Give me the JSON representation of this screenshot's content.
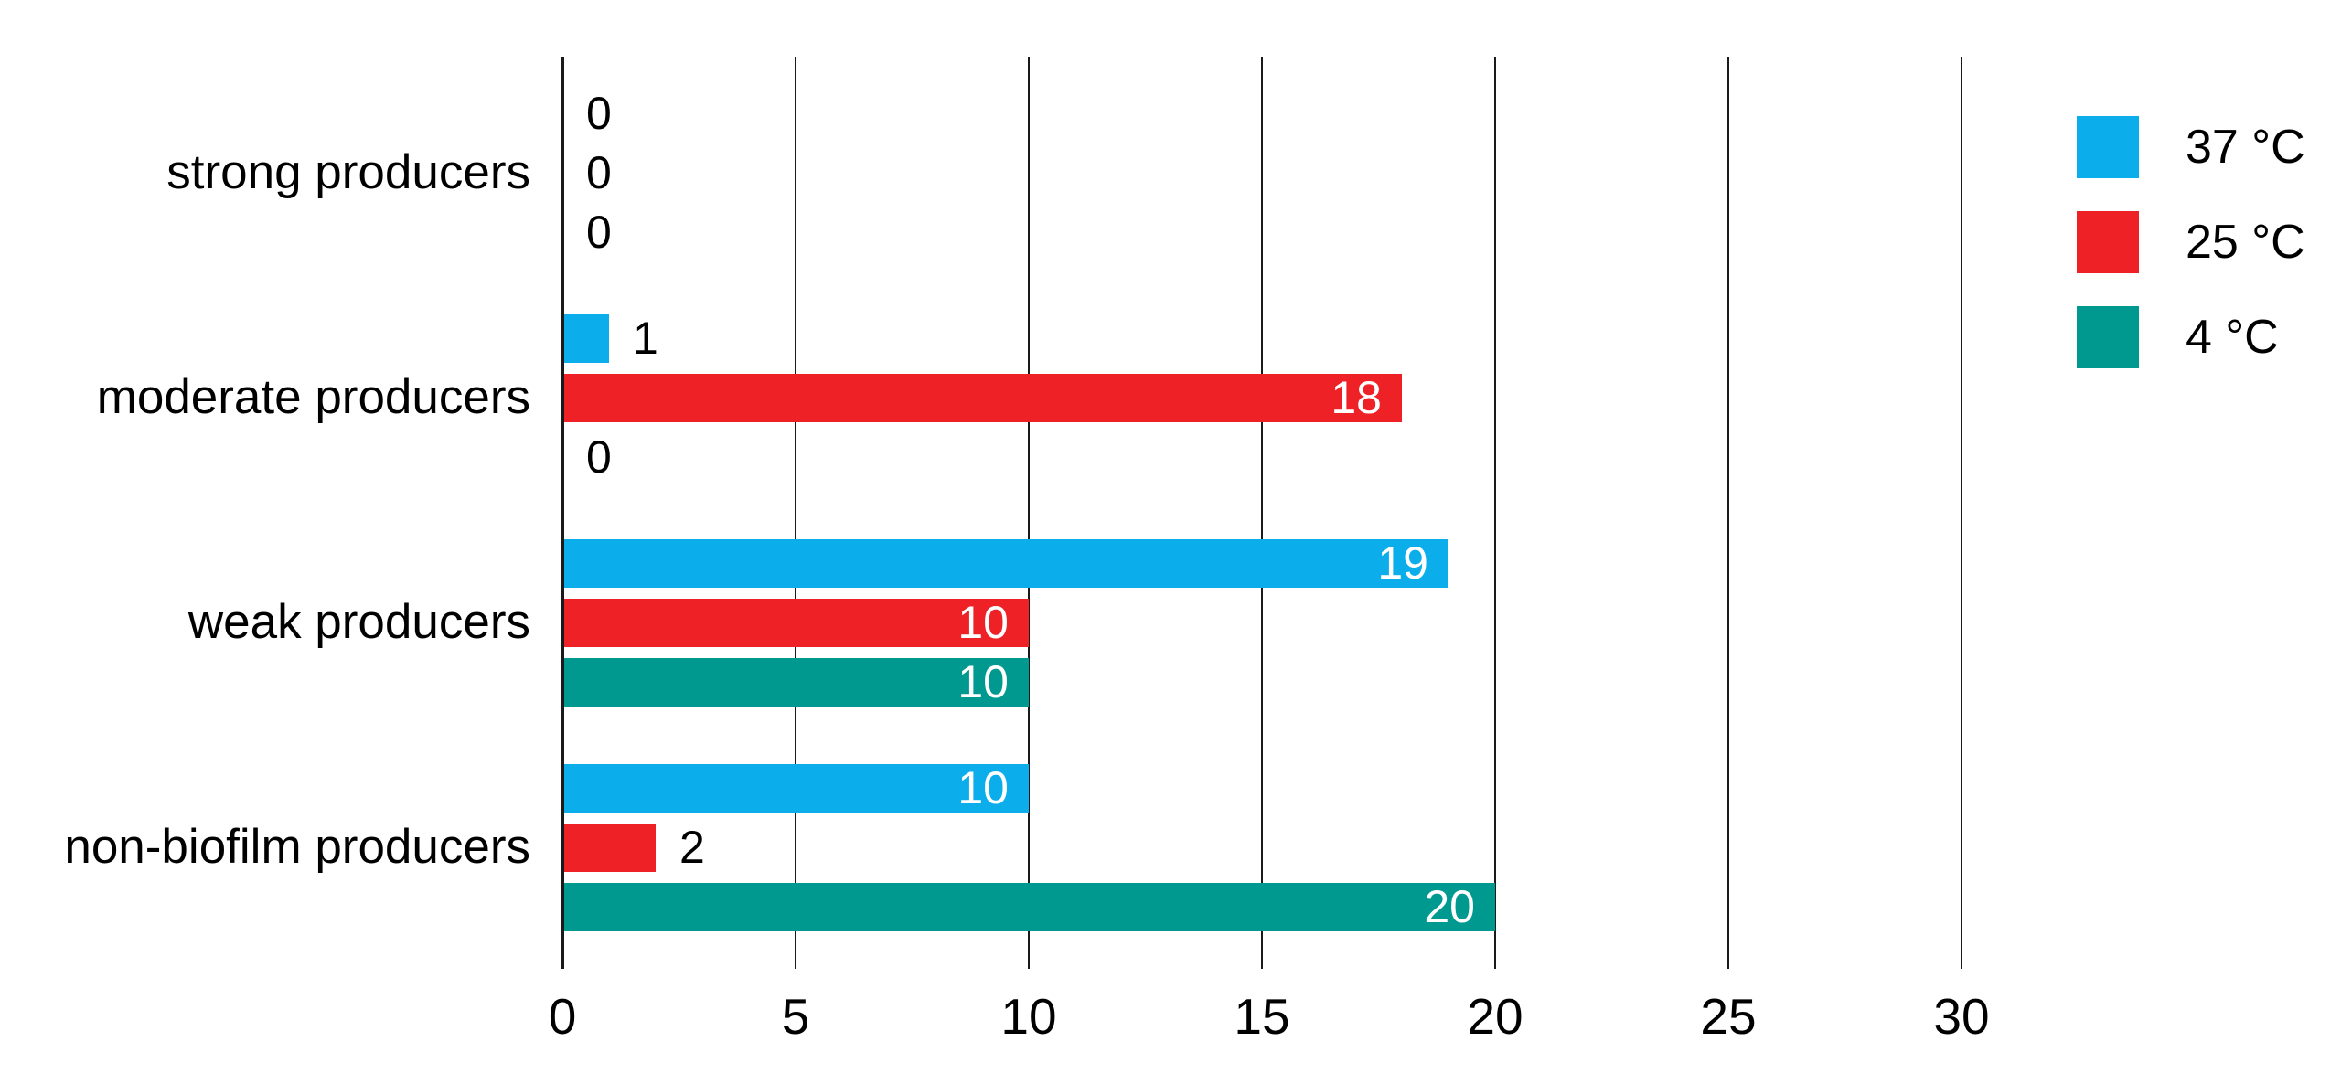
{
  "chart_data": {
    "type": "bar",
    "orientation": "horizontal",
    "title": "",
    "xlabel": "",
    "ylabel": "",
    "categories": [
      "strong producers",
      "moderate producers",
      "weak producers",
      "non-biofilm producers"
    ],
    "series": [
      {
        "name": "37 °C",
        "color": "#0baeea",
        "values": [
          0,
          1,
          19,
          10
        ]
      },
      {
        "name": "25 °C",
        "color": "#ee2127",
        "values": [
          0,
          18,
          10,
          2
        ]
      },
      {
        "name": "4 °C",
        "color": "#00998f",
        "values": [
          0,
          0,
          10,
          20
        ]
      }
    ],
    "x_ticks": [
      "0",
      "5",
      "10",
      "15",
      "20",
      "25",
      "30"
    ],
    "xlim": [
      0,
      30
    ],
    "grid": "vertical gridlines at each x tick",
    "legend_position": "top-right",
    "value_labels": "value at end of each bar; white inside bar for large values, black outside bar for 0, 1 and 2"
  },
  "colors": {
    "background": "#ffffff",
    "gridline": "#1a1a1a",
    "axis": "#1a1a1a",
    "text": "#000000",
    "value_label_inside": "#ffffff",
    "value_label_outside": "#000000"
  }
}
